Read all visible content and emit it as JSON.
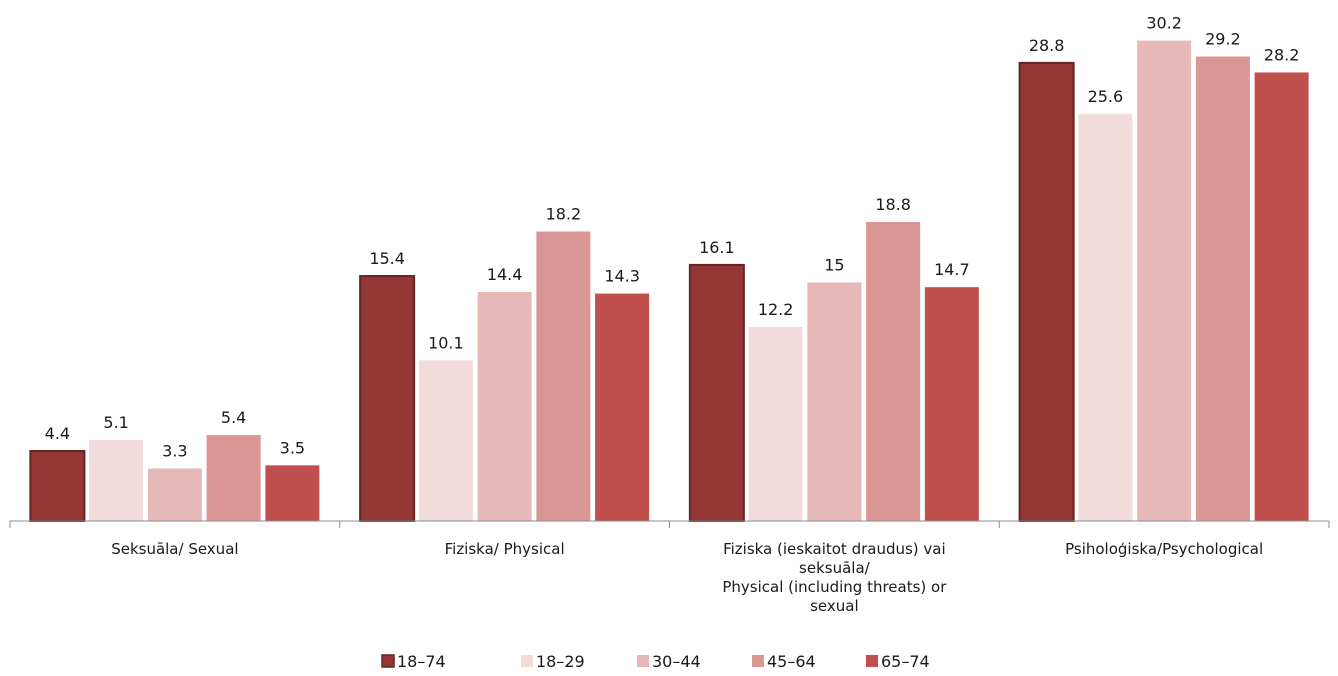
{
  "chart_data": {
    "type": "bar",
    "title": "",
    "xlabel": "",
    "ylabel": "",
    "ylim": [
      0,
      32
    ],
    "grid": false,
    "legend_position": "bottom",
    "categories": [
      [
        "Seksuāla/ Sexual"
      ],
      [
        "Fiziska/ Physical"
      ],
      [
        "Fiziska (ieskaitot draudus) vai",
        "seksuāla/",
        "Physical (including threats) or",
        "sexual"
      ],
      [
        "Psiholoģiska/Psychological"
      ]
    ],
    "series": [
      {
        "name": "18–74",
        "color": "#943634",
        "values": [
          4.4,
          15.4,
          16.1,
          28.8
        ]
      },
      {
        "name": "18–29",
        "color": "#f2dcdb",
        "values": [
          5.1,
          10.1,
          12.2,
          25.6
        ]
      },
      {
        "name": "30–44",
        "color": "#e6b9b8",
        "values": [
          3.3,
          14.4,
          15,
          30.2
        ]
      },
      {
        "name": "45–64",
        "color": "#d99694",
        "values": [
          5.4,
          18.2,
          18.8,
          29.2
        ]
      },
      {
        "name": "65–74",
        "color": "#c0504d",
        "values": [
          3.5,
          14.3,
          14.7,
          28.2
        ]
      }
    ]
  }
}
